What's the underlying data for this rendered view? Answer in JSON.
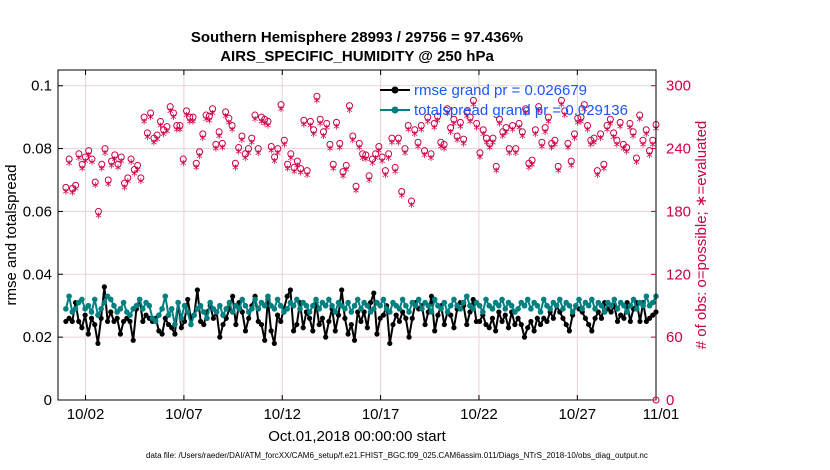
{
  "chart_data": {
    "type": "line",
    "title_line1": "Southern Hemisphere 28993 / 29756 = 97.436%",
    "title_line2": "AIRS_SPECIFIC_HUMIDITY @ 250 hPa",
    "xlabel": "Oct.01,2018 00:00:00 start",
    "ylabel_left": "rmse and totalspread",
    "ylabel_right": "# of obs: o=possible; ∗=evaluated",
    "footnote": "data file: /Users/raeder/DAI/ATM_forcXX/CAM6_setup/f.e21.FHIST_BGC.f09_025.CAM6assim.011/Diags_NTrS_2018-10/obs_diag_output.nc",
    "x_range": [
      0.6,
      31.0
    ],
    "ylim_left": [
      0,
      0.105
    ],
    "ylim_right": [
      0,
      315
    ],
    "x_ticks": [
      2,
      7,
      12,
      17,
      22,
      27,
      32
    ],
    "x_tick_labels": [
      "10/02",
      "10/07",
      "10/12",
      "10/17",
      "10/22",
      "10/27",
      "11/01"
    ],
    "y_ticks_left": [
      0,
      0.02,
      0.04,
      0.06,
      0.08,
      0.1
    ],
    "y_tick_labels_left": [
      "0",
      "0.02",
      "0.04",
      "0.06",
      "0.08",
      "0.1"
    ],
    "y_ticks_right": [
      0,
      60,
      120,
      180,
      240,
      300
    ],
    "y_tick_labels_right": [
      "0",
      "60",
      "120",
      "180",
      "240",
      "300"
    ],
    "colors": {
      "rmse": "#000000",
      "spread": "#008080",
      "obs": "#cc0044",
      "legend_text": "#1a55ff",
      "grid": "#e8d0d8"
    },
    "series": [
      {
        "name": "rmse grand pr = 0.026679",
        "values": [
          0.025,
          0.026,
          0.025,
          0.031,
          0.025,
          0.023,
          0.027,
          0.021,
          0.026,
          0.024,
          0.018,
          0.026,
          0.036,
          0.025,
          0.028,
          0.025,
          0.026,
          0.021,
          0.025,
          0.026,
          0.025,
          0.019,
          0.029,
          0.032,
          0.025,
          0.027,
          0.026,
          0.025,
          0.026,
          0.022,
          0.021,
          0.026,
          0.024,
          0.023,
          0.021,
          0.031,
          0.023,
          0.025,
          0.032,
          0.026,
          0.027,
          0.035,
          0.025,
          0.024,
          0.028,
          0.03,
          0.026,
          0.028,
          0.02,
          0.024,
          0.026,
          0.029,
          0.033,
          0.024,
          0.031,
          0.028,
          0.022,
          0.026,
          0.03,
          0.033,
          0.025,
          0.024,
          0.019,
          0.032,
          0.022,
          0.018,
          0.027,
          0.025,
          0.029,
          0.033,
          0.035,
          0.022,
          0.024,
          0.031,
          0.023,
          0.028,
          0.026,
          0.022,
          0.031,
          0.024,
          0.026,
          0.02,
          0.025,
          0.029,
          0.022,
          0.027,
          0.035,
          0.026,
          0.021,
          0.024,
          0.019,
          0.028,
          0.025,
          0.028,
          0.023,
          0.031,
          0.034,
          0.021,
          0.026,
          0.027,
          0.03,
          0.018,
          0.024,
          0.027,
          0.025,
          0.028,
          0.026,
          0.02,
          0.026,
          0.031,
          0.029,
          0.03,
          0.024,
          0.028,
          0.033,
          0.022,
          0.027,
          0.03,
          0.024,
          0.028,
          0.027,
          0.023,
          0.029,
          0.031,
          0.03,
          0.024,
          0.028,
          0.032,
          0.025,
          0.025,
          0.027,
          0.024,
          0.023,
          0.026,
          0.022,
          0.028,
          0.025,
          0.027,
          0.023,
          0.028,
          0.024,
          0.026,
          0.024,
          0.02,
          0.023,
          0.025,
          0.022,
          0.026,
          0.024,
          0.026,
          0.025,
          0.028,
          0.026,
          0.03,
          0.028,
          0.026,
          0.024,
          0.022,
          0.027,
          0.03,
          0.029,
          0.028,
          0.026,
          0.024,
          0.022,
          0.026,
          0.028,
          0.026,
          0.031,
          0.029,
          0.028,
          0.03,
          0.025,
          0.027,
          0.026,
          0.031,
          0.025,
          0.029,
          0.031,
          0.025,
          0.031,
          0.025,
          0.026,
          0.027,
          0.028
        ]
      },
      {
        "name": "totalspread grand pr = 0.029136",
        "values": [
          0.029,
          0.033,
          0.028,
          0.029,
          0.031,
          0.032,
          0.029,
          0.03,
          0.028,
          0.032,
          0.027,
          0.029,
          0.031,
          0.033,
          0.032,
          0.03,
          0.028,
          0.029,
          0.031,
          0.028,
          0.027,
          0.029,
          0.03,
          0.032,
          0.029,
          0.031,
          0.03,
          0.026,
          0.025,
          0.027,
          0.029,
          0.033,
          0.027,
          0.029,
          0.024,
          0.031,
          0.026,
          0.03,
          0.028,
          0.024,
          0.027,
          0.029,
          0.03,
          0.028,
          0.026,
          0.031,
          0.029,
          0.028,
          0.03,
          0.027,
          0.029,
          0.031,
          0.028,
          0.03,
          0.029,
          0.032,
          0.03,
          0.028,
          0.029,
          0.032,
          0.029,
          0.031,
          0.03,
          0.033,
          0.03,
          0.029,
          0.032,
          0.03,
          0.028,
          0.029,
          0.031,
          0.03,
          0.032,
          0.029,
          0.031,
          0.03,
          0.028,
          0.03,
          0.032,
          0.029,
          0.031,
          0.03,
          0.032,
          0.03,
          0.028,
          0.031,
          0.03,
          0.029,
          0.031,
          0.028,
          0.03,
          0.032,
          0.029,
          0.031,
          0.03,
          0.028,
          0.029,
          0.031,
          0.03,
          0.032,
          0.029,
          0.028,
          0.031,
          0.03,
          0.029,
          0.032,
          0.03,
          0.028,
          0.031,
          0.03,
          0.032,
          0.029,
          0.031,
          0.03,
          0.028,
          0.032,
          0.03,
          0.029,
          0.031,
          0.028,
          0.03,
          0.032,
          0.03,
          0.029,
          0.031,
          0.033,
          0.03,
          0.029,
          0.031,
          0.03,
          0.028,
          0.032,
          0.03,
          0.029,
          0.031,
          0.03,
          0.032,
          0.029,
          0.031,
          0.03,
          0.028,
          0.029,
          0.031,
          0.03,
          0.032,
          0.029,
          0.031,
          0.03,
          0.028,
          0.032,
          0.03,
          0.029,
          0.031,
          0.03,
          0.032,
          0.029,
          0.031,
          0.03,
          0.028,
          0.03,
          0.032,
          0.029,
          0.031,
          0.03,
          0.032,
          0.029,
          0.031,
          0.03,
          0.028,
          0.031,
          0.03,
          0.032,
          0.029,
          0.031,
          0.03,
          0.028,
          0.03,
          0.032,
          0.029,
          0.031,
          0.03,
          0.033,
          0.03,
          0.031,
          0.033
        ]
      },
      {
        "name": "obs possible",
        "axis": "right",
        "values": [
          203,
          230,
          202,
          205,
          235,
          225,
          232,
          238,
          230,
          208,
          180,
          225,
          240,
          210,
          228,
          234,
          225,
          232,
          207,
          212,
          230,
          220,
          224,
          212,
          270,
          255,
          274,
          250,
          253,
          266,
          258,
          261,
          280,
          274,
          262,
          262,
          230,
          276,
          270,
          270,
          226,
          237,
          254,
          272,
          271,
          278,
          244,
          256,
          245,
          275,
          269,
          262,
          226,
          241,
          252,
          235,
          240,
          250,
          272,
          240,
          270,
          268,
          266,
          242,
          232,
          240,
          282,
          248,
          225,
          235,
          222,
          228,
          221,
          267,
          219,
          266,
          258,
          290,
          268,
          256,
          264,
          244,
          225,
          265,
          245,
          218,
          224,
          281,
          252,
          204,
          245,
          235,
          234,
          214,
          230,
          235,
          242,
          232,
          219,
          235,
          250,
          222,
          250,
          199,
          240,
          262,
          190,
          258,
          246,
          262,
          238,
          270,
          235,
          264,
          271,
          246,
          244,
          278,
          260,
          268,
          252,
          265,
          249,
          275,
          270,
          286,
          264,
          236,
          258,
          250,
          245,
          250,
          223,
          268,
          256,
          260,
          240,
          262,
          240,
          264,
          256,
          278,
          226,
          229,
          258,
          280,
          246,
          260,
          270,
          245,
          248,
          223,
          286,
          276,
          245,
          228,
          254,
          269,
          270,
          282,
          262,
          248,
          250,
          219,
          254,
          225,
          262,
          268,
          255,
          248,
          265,
          244,
          241,
          264,
          256,
          231,
          272,
          248,
          258,
          238,
          248,
          263
        ]
      },
      {
        "name": "obs evaluated",
        "axis": "right",
        "values": [
          199,
          226,
          198,
          202,
          231,
          221,
          228,
          234,
          227,
          205,
          176,
          221,
          236,
          206,
          224,
          230,
          222,
          228,
          203,
          209,
          227,
          216,
          220,
          209,
          266,
          251,
          270,
          246,
          249,
          262,
          254,
          257,
          276,
          270,
          258,
          258,
          226,
          272,
          266,
          266,
          222,
          233,
          250,
          268,
          267,
          274,
          240,
          252,
          241,
          271,
          265,
          258,
          222,
          237,
          248,
          231,
          236,
          246,
          268,
          236,
          266,
          264,
          262,
          238,
          228,
          236,
          278,
          244,
          221,
          231,
          218,
          224,
          217,
          263,
          215,
          262,
          254,
          286,
          264,
          252,
          260,
          240,
          221,
          261,
          241,
          214,
          220,
          277,
          248,
          200,
          241,
          231,
          230,
          210,
          226,
          231,
          238,
          228,
          215,
          231,
          246,
          218,
          246,
          195,
          236,
          258,
          186,
          254,
          242,
          258,
          234,
          266,
          231,
          260,
          267,
          242,
          240,
          274,
          256,
          264,
          248,
          261,
          245,
          271,
          266,
          282,
          260,
          232,
          254,
          246,
          241,
          246,
          219,
          264,
          252,
          256,
          236,
          258,
          236,
          260,
          252,
          274,
          222,
          225,
          254,
          276,
          242,
          256,
          266,
          241,
          244,
          219,
          282,
          272,
          241,
          224,
          250,
          265,
          266,
          278,
          258,
          244,
          246,
          215,
          250,
          221,
          258,
          264,
          251,
          244,
          261,
          240,
          237,
          260,
          252,
          227,
          268,
          244,
          254,
          234,
          244,
          259
        ]
      }
    ]
  }
}
